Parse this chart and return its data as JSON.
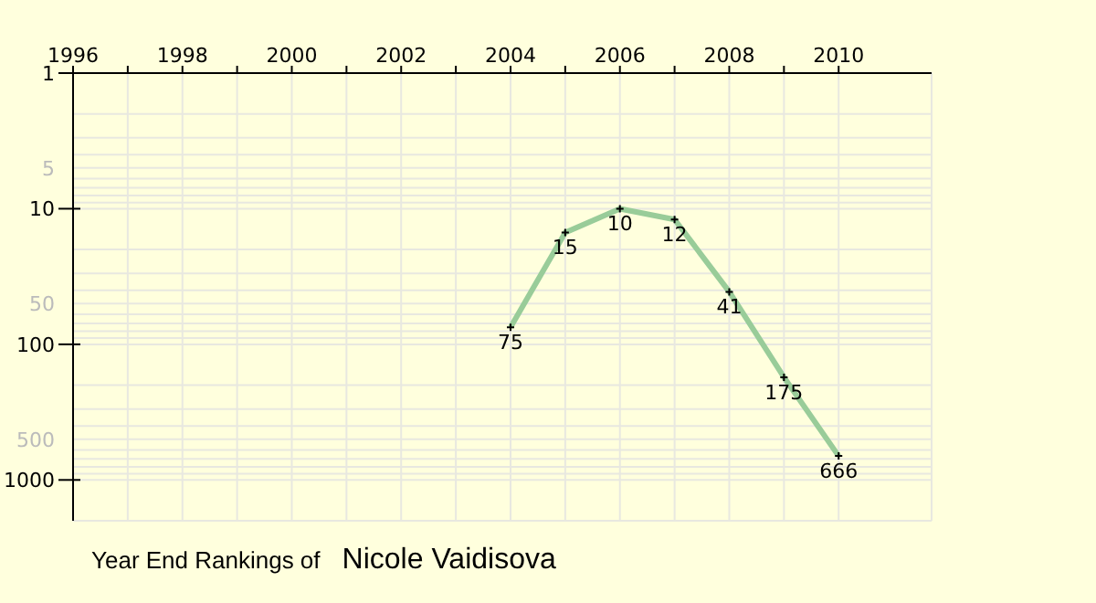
{
  "chart_data": {
    "type": "line",
    "title": "Year End Rankings of",
    "subtitle": "Nicole Vaidisova",
    "x": [
      2004,
      2005,
      2006,
      2007,
      2008,
      2009,
      2010
    ],
    "series": [
      {
        "color": "#99cc99",
        "values": [
          75,
          15,
          10,
          12,
          41,
          175,
          666
        ]
      }
    ],
    "xlim": [
      1996,
      2011.7
    ],
    "xticks": [
      1996,
      {
        "value": 1997,
        "label": null
      },
      1998,
      {
        "value": 1999,
        "label": null
      },
      2000,
      {
        "value": 2001,
        "label": null
      },
      2002,
      {
        "value": 2003,
        "label": null
      },
      2004,
      {
        "value": 2005,
        "label": null
      },
      2006,
      {
        "value": 2007,
        "label": null
      },
      2008,
      {
        "value": 2009,
        "label": null
      },
      2010
    ],
    "ylim": [
      2000,
      1
    ],
    "yticks": [
      1,
      5,
      10,
      50,
      100,
      500,
      1000
    ],
    "log": "y",
    "grid": true,
    "marker": "cross",
    "line_style": "solid",
    "data_labels": true,
    "legend": false
  }
}
